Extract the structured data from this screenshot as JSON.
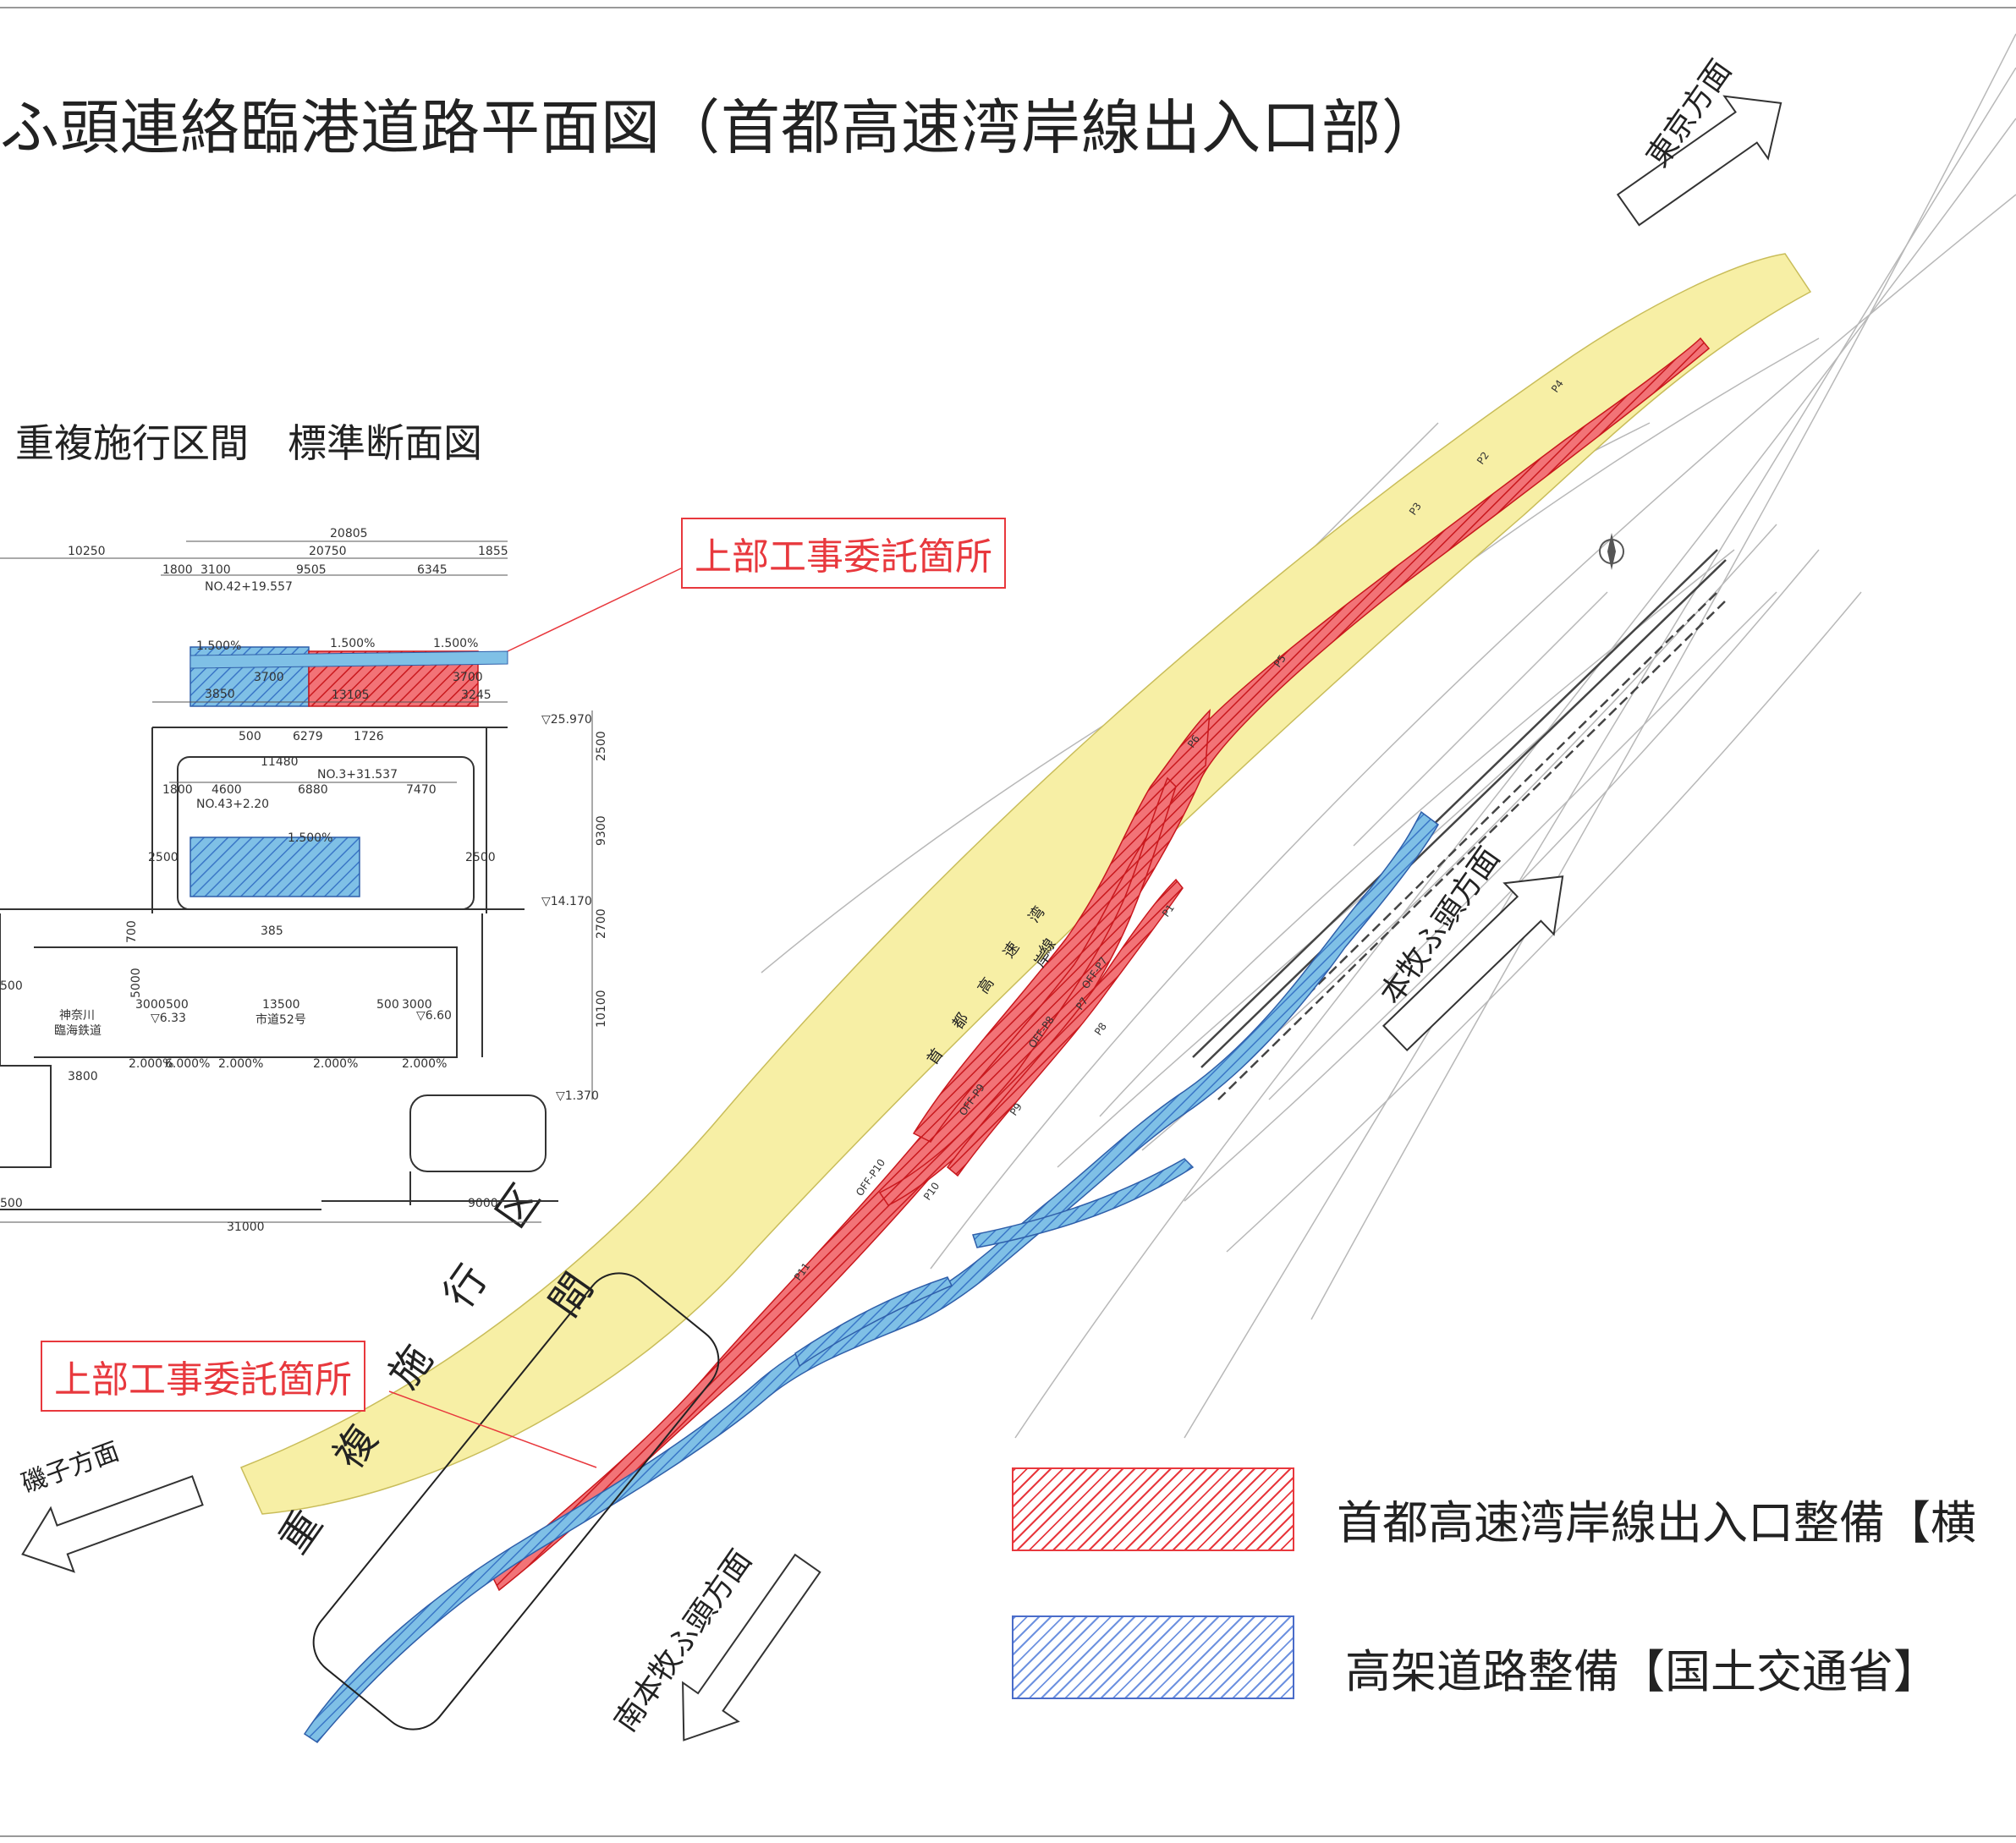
{
  "title": "ふ頭連絡臨港道路平面図（首都高速湾岸線出入口部）",
  "section_title": "重複施行区間　標準断面図",
  "callouts": {
    "top": "上部工事委託箇所",
    "bottom": "上部工事委託箇所"
  },
  "directions": {
    "tokyo": "東京方面",
    "honmoku": "本牧ふ頭方面",
    "isogo": "磯子方面",
    "minami_honmoku": "南本牧ふ頭方面"
  },
  "overlap_label": [
    "重",
    "複",
    "施",
    "行",
    "区",
    "間"
  ],
  "road_label": [
    "首",
    "都",
    "高",
    "速",
    "湾",
    "岸",
    "線"
  ],
  "legend": [
    {
      "label": "首都高速湾岸線出入口整備【横",
      "color": "#e8383d"
    },
    {
      "label": "高架道路整備【国土交通省】",
      "color": "#4a6cc9"
    }
  ],
  "colors": {
    "red": "#e8383d",
    "blue": "#5b9bd5",
    "yellow": "#f6eda0",
    "line": "#555555"
  },
  "cross_section": {
    "dims_top": [
      "10250",
      "20805",
      "20750",
      "1855",
      "1800",
      "3100",
      "9505",
      "6345"
    ],
    "stations": [
      "NO.42+19.557",
      "NO.3+31.537",
      "NO.43+2.20"
    ],
    "slopes": [
      "1.500%",
      "1.500%",
      "1.500%",
      "1.500%"
    ],
    "upper_deck": [
      "3850",
      "3700",
      "13105",
      "3700",
      "3245"
    ],
    "mid_dims": [
      "500",
      "6279",
      "1726",
      "11480",
      "1800",
      "4600",
      "6880",
      "7470",
      "2500",
      "2500"
    ],
    "elevations": [
      "▽25.970",
      "▽14.170",
      "▽1.370"
    ],
    "vertical_dims": [
      "2500",
      "9300",
      "2700",
      "10100"
    ],
    "lower_dims": [
      "385",
      "700",
      "5000",
      "3000",
      "500",
      "13500",
      "500",
      "3000",
      "3800",
      "9000",
      "31000"
    ],
    "lower_labels": [
      "▽6.33",
      "▽6.60",
      "市道52号"
    ],
    "railway": [
      "神奈川",
      "臨海鉄道"
    ],
    "lower_slopes": [
      "2.000%",
      "6.000%",
      "2.000%",
      "2.000%",
      "2.000%"
    ],
    "edge_dims": [
      "500",
      "500"
    ]
  },
  "piers": [
    "P1",
    "P2",
    "P3",
    "P4",
    "P5",
    "P6",
    "P7",
    "P8",
    "P9",
    "P10",
    "P11",
    "OFF-P7",
    "OFF-P8",
    "OFF-P9",
    "OFF-P10"
  ]
}
